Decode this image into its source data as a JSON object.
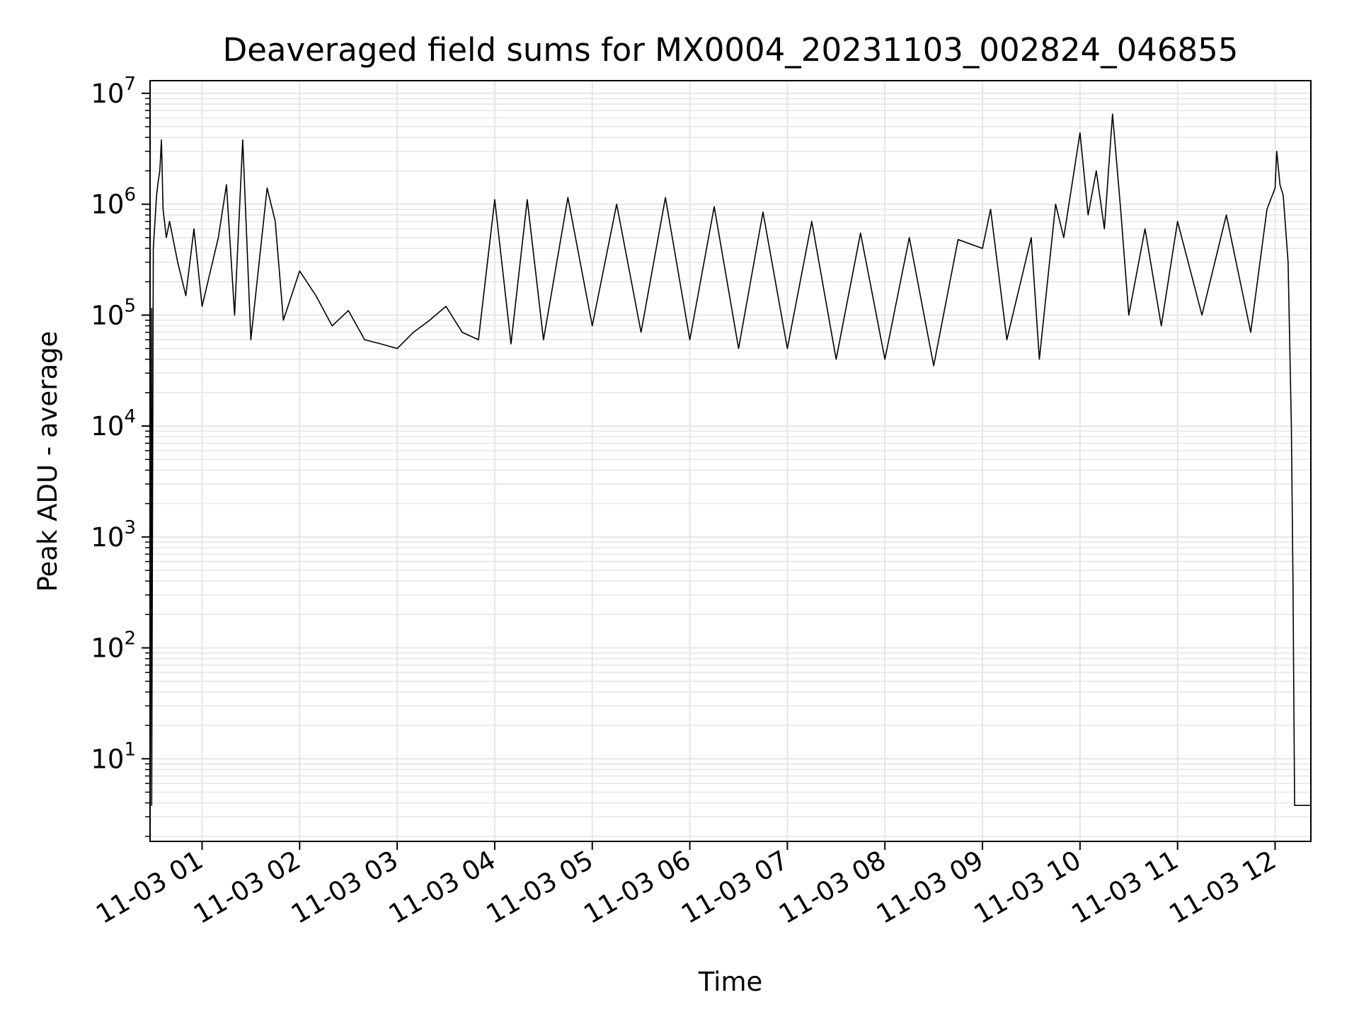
{
  "chart_data": {
    "type": "line",
    "title": "Deaveraged field sums for MX0004_20231103_002824_046855",
    "xlabel": "Time",
    "ylabel": "Peak ADU - average",
    "y_scale": "log",
    "ylim": [
      1.8,
      13000000
    ],
    "xlim": [
      "2023-11-03 00:28",
      "2023-11-03 12:22"
    ],
    "grid": true,
    "grid_color": "#e6e6e6",
    "line_color": "#000000",
    "x_ticks": [
      {
        "time": "2023-11-03 01:00",
        "label": "11-03 01"
      },
      {
        "time": "2023-11-03 02:00",
        "label": "11-03 02"
      },
      {
        "time": "2023-11-03 03:00",
        "label": "11-03 03"
      },
      {
        "time": "2023-11-03 04:00",
        "label": "11-03 04"
      },
      {
        "time": "2023-11-03 05:00",
        "label": "11-03 05"
      },
      {
        "time": "2023-11-03 06:00",
        "label": "11-03 06"
      },
      {
        "time": "2023-11-03 07:00",
        "label": "11-03 07"
      },
      {
        "time": "2023-11-03 08:00",
        "label": "11-03 08"
      },
      {
        "time": "2023-11-03 09:00",
        "label": "11-03 09"
      },
      {
        "time": "2023-11-03 10:00",
        "label": "11-03 10"
      },
      {
        "time": "2023-11-03 11:00",
        "label": "11-03 11"
      },
      {
        "time": "2023-11-03 12:00",
        "label": "11-03 12"
      }
    ],
    "y_ticks": [
      {
        "value": 10,
        "base": "10",
        "exp": "1"
      },
      {
        "value": 100,
        "base": "10",
        "exp": "2"
      },
      {
        "value": 1000,
        "base": "10",
        "exp": "3"
      },
      {
        "value": 10000,
        "base": "10",
        "exp": "4"
      },
      {
        "value": 100000,
        "base": "10",
        "exp": "5"
      },
      {
        "value": 1000000,
        "base": "10",
        "exp": "6"
      },
      {
        "value": 10000000,
        "base": "10",
        "exp": "7"
      }
    ],
    "series": [
      {
        "line_points": [
          [
            "2023-11-03 00:28",
            2
          ],
          [
            "2023-11-03 00:29",
            115000
          ],
          [
            "2023-11-03 00:29",
            3.8
          ],
          [
            "2023-11-03 00:30",
            400000
          ],
          [
            "2023-11-03 00:32",
            1200000
          ],
          [
            "2023-11-03 00:33",
            1600000
          ],
          [
            "2023-11-03 00:34",
            2000000
          ],
          [
            "2023-11-03 00:35",
            3800000
          ],
          [
            "2023-11-03 00:36",
            900000
          ],
          [
            "2023-11-03 00:38",
            500000
          ],
          [
            "2023-11-03 00:40",
            700000
          ],
          [
            "2023-11-03 00:45",
            300000
          ],
          [
            "2023-11-03 00:50",
            150000
          ],
          [
            "2023-11-03 00:55",
            600000
          ],
          [
            "2023-11-03 01:00",
            120000
          ],
          [
            "2023-11-03 01:10",
            500000
          ],
          [
            "2023-11-03 01:15",
            1500000
          ],
          [
            "2023-11-03 01:20",
            100000
          ],
          [
            "2023-11-03 01:25",
            3800000
          ],
          [
            "2023-11-03 01:30",
            60000
          ],
          [
            "2023-11-03 01:40",
            1400000
          ],
          [
            "2023-11-03 01:45",
            700000
          ],
          [
            "2023-11-03 01:50",
            90000
          ],
          [
            "2023-11-03 02:00",
            250000
          ],
          [
            "2023-11-03 02:10",
            150000
          ],
          [
            "2023-11-03 02:20",
            80000
          ],
          [
            "2023-11-03 02:30",
            110000
          ],
          [
            "2023-11-03 02:40",
            60000
          ],
          [
            "2023-11-03 02:50",
            55000
          ],
          [
            "2023-11-03 03:00",
            50000
          ],
          [
            "2023-11-03 03:10",
            70000
          ],
          [
            "2023-11-03 03:20",
            90000
          ],
          [
            "2023-11-03 03:30",
            120000
          ],
          [
            "2023-11-03 03:40",
            70000
          ],
          [
            "2023-11-03 03:50",
            60000
          ],
          [
            "2023-11-03 04:00",
            1100000
          ],
          [
            "2023-11-03 04:10",
            55000
          ],
          [
            "2023-11-03 04:20",
            1100000
          ],
          [
            "2023-11-03 04:30",
            60000
          ],
          [
            "2023-11-03 04:45",
            1150000
          ],
          [
            "2023-11-03 05:00",
            80000
          ],
          [
            "2023-11-03 05:15",
            1000000
          ],
          [
            "2023-11-03 05:30",
            70000
          ],
          [
            "2023-11-03 05:45",
            1150000
          ],
          [
            "2023-11-03 06:00",
            60000
          ],
          [
            "2023-11-03 06:15",
            950000
          ],
          [
            "2023-11-03 06:30",
            50000
          ],
          [
            "2023-11-03 06:45",
            850000
          ],
          [
            "2023-11-03 07:00",
            50000
          ],
          [
            "2023-11-03 07:15",
            700000
          ],
          [
            "2023-11-03 07:30",
            40000
          ],
          [
            "2023-11-03 07:45",
            550000
          ],
          [
            "2023-11-03 08:00",
            40000
          ],
          [
            "2023-11-03 08:15",
            500000
          ],
          [
            "2023-11-03 08:30",
            35000
          ],
          [
            "2023-11-03 08:45",
            480000
          ],
          [
            "2023-11-03 09:00",
            400000
          ],
          [
            "2023-11-03 09:05",
            900000
          ],
          [
            "2023-11-03 09:15",
            60000
          ],
          [
            "2023-11-03 09:30",
            500000
          ],
          [
            "2023-11-03 09:35",
            40000
          ],
          [
            "2023-11-03 09:45",
            1000000
          ],
          [
            "2023-11-03 09:50",
            500000
          ],
          [
            "2023-11-03 10:00",
            4400000
          ],
          [
            "2023-11-03 10:05",
            800000
          ],
          [
            "2023-11-03 10:10",
            2000000
          ],
          [
            "2023-11-03 10:15",
            600000
          ],
          [
            "2023-11-03 10:20",
            6500000
          ],
          [
            "2023-11-03 10:25",
            900000
          ],
          [
            "2023-11-03 10:30",
            100000
          ],
          [
            "2023-11-03 10:40",
            600000
          ],
          [
            "2023-11-03 10:50",
            80000
          ],
          [
            "2023-11-03 11:00",
            700000
          ],
          [
            "2023-11-03 11:15",
            100000
          ],
          [
            "2023-11-03 11:30",
            800000
          ],
          [
            "2023-11-03 11:45",
            70000
          ],
          [
            "2023-11-03 11:55",
            900000
          ],
          [
            "2023-11-03 12:00",
            1400000
          ],
          [
            "2023-11-03 12:01",
            3000000
          ],
          [
            "2023-11-03 12:03",
            1500000
          ],
          [
            "2023-11-03 12:05",
            1200000
          ],
          [
            "2023-11-03 12:08",
            300000
          ],
          [
            "2023-11-03 12:10",
            10000
          ],
          [
            "2023-11-03 12:11",
            400
          ],
          [
            "2023-11-03 12:12",
            3.8
          ],
          [
            "2023-11-03 12:22",
            3.8
          ]
        ]
      }
    ]
  }
}
